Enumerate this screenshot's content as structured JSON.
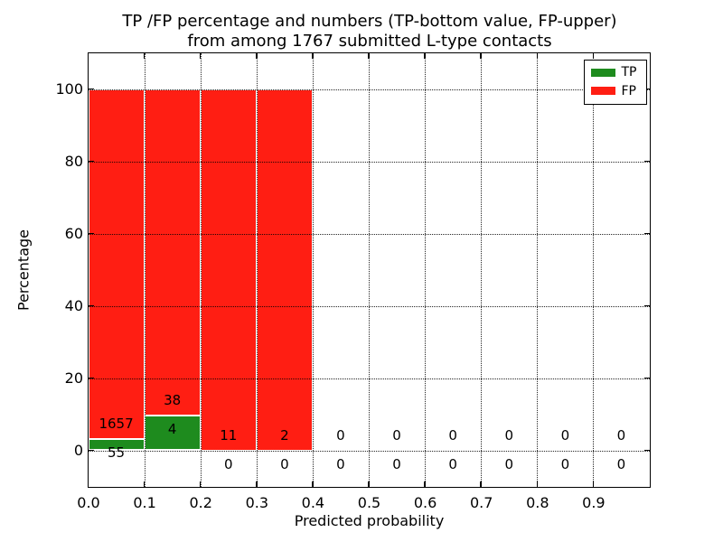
{
  "chart_data": {
    "type": "bar",
    "stacking": "percent",
    "title_line1": "TP /FP percentage and numbers (TP-bottom value, FP-upper)",
    "title_line2": "from among 1767 submitted L-type contacts",
    "xlabel": "Predicted probability",
    "ylabel": "Percentage",
    "xlim": [
      0.0,
      1.0
    ],
    "ylim": [
      -10,
      110
    ],
    "bin_width": 0.1,
    "bin_starts": [
      0.0,
      0.1,
      0.2,
      0.3,
      0.4,
      0.5,
      0.6,
      0.7,
      0.8,
      0.9
    ],
    "xticks": [
      {
        "v": 0.0,
        "label": "0.0"
      },
      {
        "v": 0.1,
        "label": "0.1"
      },
      {
        "v": 0.2,
        "label": "0.2"
      },
      {
        "v": 0.3,
        "label": "0.3"
      },
      {
        "v": 0.4,
        "label": "0.4"
      },
      {
        "v": 0.5,
        "label": "0.5"
      },
      {
        "v": 0.6,
        "label": "0.6"
      },
      {
        "v": 0.7,
        "label": "0.7"
      },
      {
        "v": 0.8,
        "label": "0.8"
      },
      {
        "v": 0.9,
        "label": "0.9"
      }
    ],
    "yticks": [
      {
        "v": 0,
        "label": "0"
      },
      {
        "v": 20,
        "label": "20"
      },
      {
        "v": 40,
        "label": "40"
      },
      {
        "v": 60,
        "label": "60"
      },
      {
        "v": 80,
        "label": "80"
      },
      {
        "v": 100,
        "label": "100"
      }
    ],
    "grid": "dotted",
    "legend_position": "upper right",
    "series": [
      {
        "name": "TP",
        "color": "#1e8b1e",
        "counts": [
          55,
          4,
          0,
          0,
          0,
          0,
          0,
          0,
          0,
          0
        ]
      },
      {
        "name": "FP",
        "color": "#ff1e13",
        "counts": [
          1657,
          38,
          11,
          2,
          0,
          0,
          0,
          0,
          0,
          0
        ]
      }
    ],
    "total_contacts": 1767
  }
}
